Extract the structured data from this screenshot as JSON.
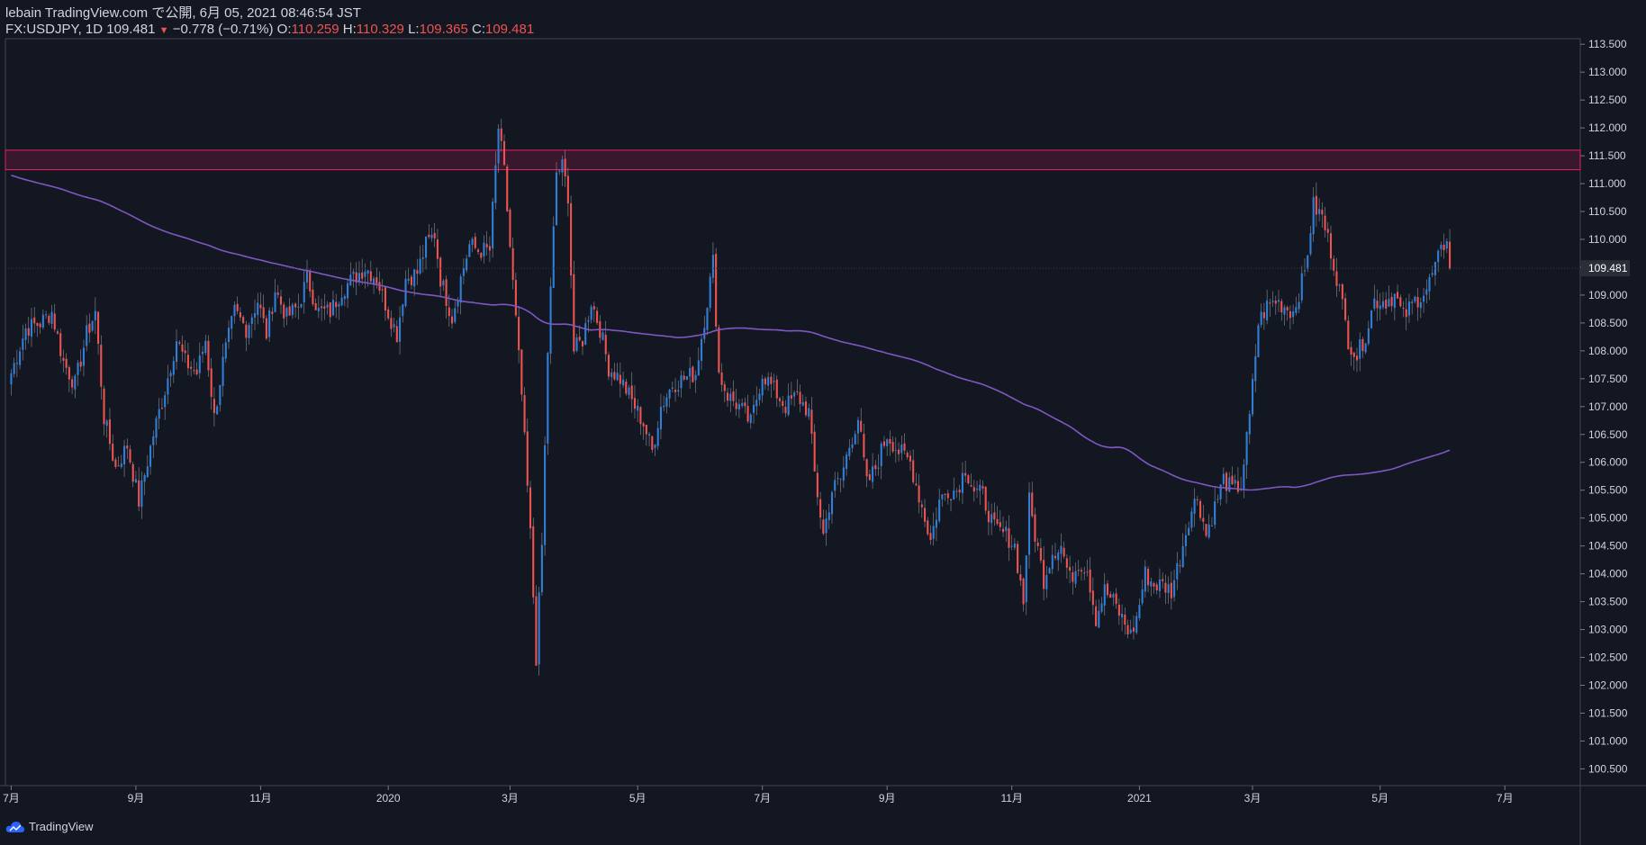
{
  "header": {
    "publish_line": "lebain TradingView.com で公開, 6月 05, 2021 08:46:54 JST",
    "symbol": "FX:USDJPY, 1D",
    "last": "109.481",
    "change": "−0.778 (−0.71%)",
    "o_label": "O:",
    "o_value": "110.259",
    "h_label": "H:",
    "h_value": "110.329",
    "l_label": "L:",
    "l_value": "109.365",
    "c_label": "C:",
    "c_value": "109.481"
  },
  "footer": {
    "brand": "TradingView"
  },
  "colors": {
    "background": "#131722",
    "up": "#2f7fd8",
    "down": "#ef5350",
    "ma": "#7e57c2",
    "zone": "#e91e63",
    "text": "#d1d4dc"
  },
  "chart_data": {
    "type": "candlestick",
    "symbol": "FX:USDJPY",
    "interval": "1D",
    "ylim": [
      100.2,
      113.6
    ],
    "y_ticks": [
      "100.500",
      "101.000",
      "101.500",
      "102.000",
      "102.500",
      "103.000",
      "103.500",
      "104.000",
      "104.500",
      "105.000",
      "105.500",
      "106.000",
      "106.500",
      "107.000",
      "107.500",
      "108.000",
      "108.500",
      "109.000",
      "109.500",
      "110.000",
      "110.500",
      "111.000",
      "111.500",
      "112.000",
      "112.500",
      "113.000",
      "113.500"
    ],
    "x_ticks": [
      {
        "label": "7月",
        "i": 0
      },
      {
        "label": "9月",
        "i": 43
      },
      {
        "label": "11月",
        "i": 86
      },
      {
        "label": "2020",
        "i": 130
      },
      {
        "label": "3月",
        "i": 172
      },
      {
        "label": "5月",
        "i": 216
      },
      {
        "label": "7月",
        "i": 259
      },
      {
        "label": "9月",
        "i": 302
      },
      {
        "label": "11月",
        "i": 345
      },
      {
        "label": "2021",
        "i": 389
      },
      {
        "label": "3月",
        "i": 428
      },
      {
        "label": "5月",
        "i": 472
      },
      {
        "label": "7月",
        "i": 515
      }
    ],
    "x_range": [
      -2,
      541
    ],
    "last_price_label": "109.481",
    "resistance_zone": [
      111.25,
      111.6
    ],
    "price_anchors": [
      [
        0,
        107.6
      ],
      [
        5,
        108.4
      ],
      [
        10,
        108.5
      ],
      [
        14,
        108.7
      ],
      [
        18,
        107.8
      ],
      [
        22,
        107.4
      ],
      [
        26,
        108.3
      ],
      [
        29,
        108.7
      ],
      [
        32,
        106.8
      ],
      [
        36,
        105.9
      ],
      [
        40,
        106.3
      ],
      [
        44,
        105.3
      ],
      [
        49,
        106.5
      ],
      [
        53,
        107.3
      ],
      [
        57,
        108.2
      ],
      [
        60,
        107.8
      ],
      [
        64,
        107.6
      ],
      [
        67,
        108.2
      ],
      [
        70,
        106.8
      ],
      [
        73,
        107.8
      ],
      [
        77,
        108.7
      ],
      [
        81,
        108.4
      ],
      [
        85,
        108.9
      ],
      [
        88,
        108.3
      ],
      [
        91,
        109.1
      ],
      [
        95,
        108.6
      ],
      [
        99,
        108.8
      ],
      [
        102,
        109.3
      ],
      [
        106,
        108.7
      ],
      [
        110,
        108.7
      ],
      [
        114,
        109.1
      ],
      [
        118,
        109.3
      ],
      [
        122,
        109.5
      ],
      [
        126,
        109.3
      ],
      [
        130,
        108.7
      ],
      [
        133,
        108.3
      ],
      [
        136,
        109.3
      ],
      [
        140,
        109.4
      ],
      [
        143,
        109.9
      ],
      [
        146,
        110.1
      ],
      [
        148,
        109.3
      ],
      [
        152,
        108.6
      ],
      [
        155,
        109.3
      ],
      [
        158,
        109.9
      ],
      [
        161,
        109.8
      ],
      [
        165,
        109.8
      ],
      [
        168,
        112.0
      ],
      [
        170,
        111.2
      ],
      [
        173,
        109.2
      ],
      [
        176,
        107.2
      ],
      [
        179,
        104.7
      ],
      [
        181,
        102.5
      ],
      [
        183,
        104.5
      ],
      [
        185,
        108.0
      ],
      [
        188,
        111.2
      ],
      [
        190,
        111.3
      ],
      [
        192,
        110.8
      ],
      [
        194,
        108.0
      ],
      [
        197,
        108.2
      ],
      [
        200,
        108.9
      ],
      [
        203,
        108.4
      ],
      [
        206,
        107.7
      ],
      [
        210,
        107.5
      ],
      [
        214,
        107.1
      ],
      [
        218,
        106.7
      ],
      [
        221,
        106.2
      ],
      [
        224,
        107.0
      ],
      [
        228,
        107.4
      ],
      [
        232,
        107.5
      ],
      [
        236,
        107.6
      ],
      [
        240,
        108.9
      ],
      [
        242,
        109.6
      ],
      [
        244,
        107.6
      ],
      [
        247,
        107.2
      ],
      [
        251,
        107.0
      ],
      [
        255,
        106.7
      ],
      [
        259,
        107.6
      ],
      [
        263,
        107.3
      ],
      [
        267,
        107.0
      ],
      [
        271,
        107.2
      ],
      [
        275,
        106.9
      ],
      [
        277,
        105.8
      ],
      [
        280,
        104.7
      ],
      [
        283,
        105.5
      ],
      [
        286,
        105.7
      ],
      [
        289,
        106.3
      ],
      [
        292,
        106.8
      ],
      [
        295,
        105.6
      ],
      [
        298,
        105.9
      ],
      [
        302,
        106.5
      ],
      [
        306,
        106.2
      ],
      [
        310,
        106.0
      ],
      [
        313,
        105.4
      ],
      [
        317,
        104.6
      ],
      [
        320,
        105.3
      ],
      [
        323,
        105.5
      ],
      [
        326,
        105.5
      ],
      [
        329,
        105.9
      ],
      [
        332,
        105.5
      ],
      [
        335,
        105.4
      ],
      [
        339,
        104.8
      ],
      [
        343,
        104.7
      ],
      [
        346,
        104.5
      ],
      [
        349,
        103.5
      ],
      [
        351,
        105.3
      ],
      [
        353,
        104.7
      ],
      [
        356,
        103.9
      ],
      [
        359,
        104.4
      ],
      [
        362,
        104.5
      ],
      [
        365,
        103.9
      ],
      [
        368,
        104.2
      ],
      [
        371,
        104.1
      ],
      [
        374,
        103.2
      ],
      [
        377,
        103.7
      ],
      [
        380,
        103.5
      ],
      [
        383,
        103.2
      ],
      [
        386,
        102.9
      ],
      [
        388,
        103.2
      ],
      [
        391,
        104.0
      ],
      [
        394,
        103.8
      ],
      [
        397,
        103.8
      ],
      [
        400,
        103.7
      ],
      [
        403,
        104.3
      ],
      [
        406,
        105.0
      ],
      [
        409,
        105.4
      ],
      [
        412,
        104.7
      ],
      [
        415,
        105.2
      ],
      [
        418,
        105.7
      ],
      [
        421,
        105.5
      ],
      [
        424,
        105.6
      ],
      [
        427,
        106.8
      ],
      [
        430,
        108.5
      ],
      [
        433,
        108.8
      ],
      [
        436,
        108.9
      ],
      [
        439,
        108.8
      ],
      [
        442,
        108.7
      ],
      [
        446,
        109.4
      ],
      [
        449,
        110.6
      ],
      [
        452,
        110.4
      ],
      [
        455,
        109.8
      ],
      [
        458,
        109.1
      ],
      [
        461,
        108.2
      ],
      [
        464,
        107.9
      ],
      [
        467,
        108.3
      ],
      [
        470,
        108.9
      ],
      [
        474,
        108.9
      ],
      [
        477,
        109.0
      ],
      [
        480,
        108.6
      ],
      [
        484,
        108.9
      ],
      [
        488,
        109.1
      ],
      [
        491,
        109.5
      ],
      [
        494,
        109.9
      ],
      [
        496,
        110.259
      ]
    ]
  }
}
